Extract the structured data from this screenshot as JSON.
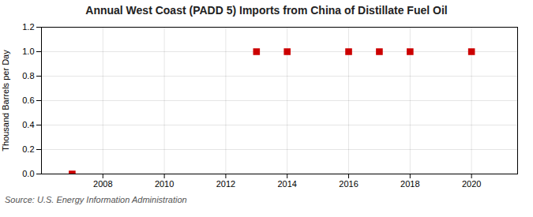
{
  "chart_data": {
    "type": "scatter",
    "title": "Annual West Coast (PADD 5) Imports from China of Distillate Fuel Oil",
    "ylabel": "Thousand Barrels per Day",
    "source": "Source: U.S. Energy Information Administration",
    "x": [
      2007,
      2013,
      2014,
      2016,
      2017,
      2018,
      2020
    ],
    "values": [
      0.0,
      1.0,
      1.0,
      1.0,
      1.0,
      1.0,
      1.0
    ],
    "color": "#cc0000",
    "marker": "square",
    "xlim": [
      2006.0,
      2021.5
    ],
    "ylim": [
      0.0,
      1.2
    ],
    "xticks": [
      2008,
      2010,
      2012,
      2014,
      2016,
      2018,
      2020
    ],
    "yticks": [
      {
        "value": 0.0,
        "label": "0.0"
      },
      0.2,
      0.4,
      0.6,
      0.8,
      {
        "value": 1.0,
        "label": "1.0"
      },
      1.2
    ],
    "grid": true
  }
}
